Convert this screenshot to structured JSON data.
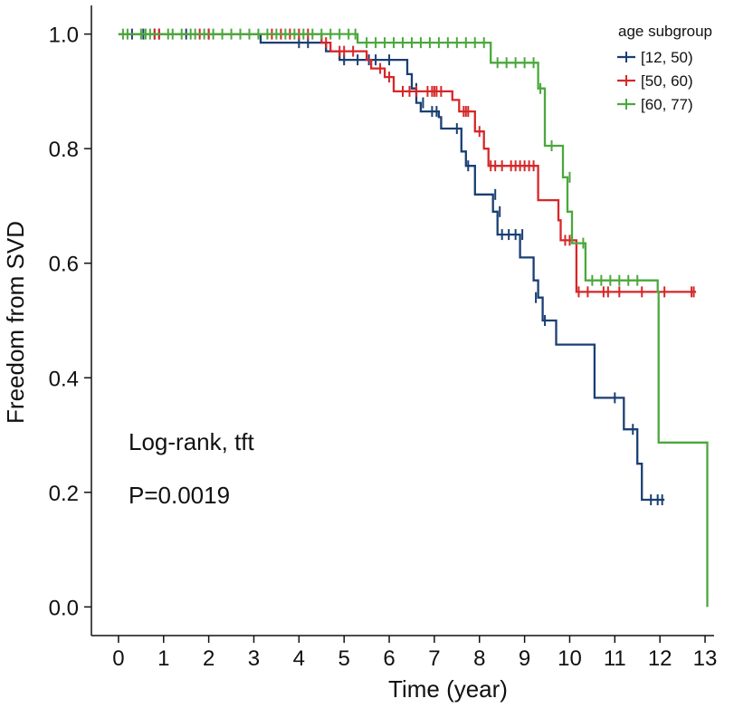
{
  "chart_data": {
    "type": "line",
    "subtype": "kaplan-meier",
    "title": "",
    "xlabel": "Time (year)",
    "ylabel": "Freedom from SVD",
    "xlim": [
      -0.6,
      13.2
    ],
    "ylim": [
      -0.05,
      1.05
    ],
    "x_ticks": [
      0,
      1,
      2,
      3,
      4,
      5,
      6,
      7,
      8,
      9,
      10,
      11,
      12,
      13
    ],
    "x_tick_labels": [
      "0",
      "1",
      "2",
      "3",
      "4",
      "5",
      "6",
      "7",
      "8",
      "9",
      "10",
      "11",
      "12",
      "13"
    ],
    "y_ticks": [
      0.0,
      0.2,
      0.4,
      0.6,
      0.8,
      1.0
    ],
    "y_tick_labels": [
      "0.0",
      "0.2",
      "0.4",
      "0.6",
      "0.8",
      "1.0"
    ],
    "grid": false,
    "legend": {
      "title": "age subgroup",
      "position": "top-right"
    },
    "annotations": [
      "Log-rank, tft",
      "P=0.0019"
    ],
    "series": [
      {
        "name": "[12, 50)",
        "color": "#1a3f73",
        "steps": [
          [
            0,
            1.0
          ],
          [
            3.15,
            0.985
          ],
          [
            4.6,
            0.97
          ],
          [
            4.9,
            0.955
          ],
          [
            6.4,
            0.93
          ],
          [
            6.5,
            0.905
          ],
          [
            6.6,
            0.88
          ],
          [
            6.7,
            0.865
          ],
          [
            7.1,
            0.855
          ],
          [
            7.15,
            0.835
          ],
          [
            7.6,
            0.795
          ],
          [
            7.7,
            0.77
          ],
          [
            7.9,
            0.72
          ],
          [
            8.3,
            0.69
          ],
          [
            8.4,
            0.65
          ],
          [
            8.9,
            0.61
          ],
          [
            9.2,
            0.57
          ],
          [
            9.3,
            0.54
          ],
          [
            9.4,
            0.5
          ],
          [
            9.7,
            0.458
          ],
          [
            10.55,
            0.365
          ],
          [
            11.2,
            0.31
          ],
          [
            11.5,
            0.25
          ],
          [
            11.6,
            0.187
          ],
          [
            12.1,
            0.187
          ]
        ],
        "censor": [
          [
            0.3,
            1.0
          ],
          [
            0.55,
            1.0
          ],
          [
            0.8,
            1.0
          ],
          [
            0.9,
            1.0
          ],
          [
            1.5,
            1.0
          ],
          [
            2.0,
            1.0
          ],
          [
            4.0,
            0.985
          ],
          [
            4.2,
            0.985
          ],
          [
            5.0,
            0.955
          ],
          [
            5.3,
            0.955
          ],
          [
            5.55,
            0.955
          ],
          [
            5.7,
            0.955
          ],
          [
            6.0,
            0.955
          ],
          [
            6.6,
            0.905
          ],
          [
            6.75,
            0.88
          ],
          [
            6.95,
            0.865
          ],
          [
            7.05,
            0.865
          ],
          [
            7.5,
            0.835
          ],
          [
            7.75,
            0.77
          ],
          [
            8.35,
            0.72
          ],
          [
            8.45,
            0.69
          ],
          [
            8.5,
            0.65
          ],
          [
            8.65,
            0.65
          ],
          [
            8.8,
            0.65
          ],
          [
            8.95,
            0.65
          ],
          [
            9.25,
            0.54
          ],
          [
            9.45,
            0.5
          ],
          [
            11.0,
            0.365
          ],
          [
            11.4,
            0.31
          ],
          [
            11.8,
            0.187
          ],
          [
            11.95,
            0.187
          ],
          [
            12.05,
            0.187
          ]
        ]
      },
      {
        "name": "[50, 60)",
        "color": "#d62728",
        "steps": [
          [
            0,
            1.0
          ],
          [
            4.5,
            0.985
          ],
          [
            4.7,
            0.97
          ],
          [
            5.5,
            0.955
          ],
          [
            5.6,
            0.94
          ],
          [
            5.9,
            0.925
          ],
          [
            6.1,
            0.9
          ],
          [
            7.4,
            0.885
          ],
          [
            7.55,
            0.865
          ],
          [
            7.9,
            0.83
          ],
          [
            8.1,
            0.8
          ],
          [
            8.2,
            0.77
          ],
          [
            9.3,
            0.71
          ],
          [
            9.75,
            0.675
          ],
          [
            9.8,
            0.64
          ],
          [
            10.15,
            0.55
          ],
          [
            12.8,
            0.55
          ]
        ],
        "censor": [
          [
            0.8,
            1.0
          ],
          [
            0.9,
            1.0
          ],
          [
            1.8,
            1.0
          ],
          [
            2.0,
            1.0
          ],
          [
            3.4,
            1.0
          ],
          [
            3.6,
            1.0
          ],
          [
            3.8,
            1.0
          ],
          [
            4.0,
            1.0
          ],
          [
            4.2,
            1.0
          ],
          [
            4.6,
            0.985
          ],
          [
            4.9,
            0.97
          ],
          [
            5.0,
            0.97
          ],
          [
            5.2,
            0.97
          ],
          [
            5.8,
            0.94
          ],
          [
            6.0,
            0.925
          ],
          [
            6.3,
            0.9
          ],
          [
            6.45,
            0.9
          ],
          [
            6.6,
            0.9
          ],
          [
            6.85,
            0.9
          ],
          [
            6.95,
            0.9
          ],
          [
            7.0,
            0.9
          ],
          [
            7.05,
            0.9
          ],
          [
            7.15,
            0.9
          ],
          [
            7.65,
            0.865
          ],
          [
            7.7,
            0.865
          ],
          [
            7.75,
            0.865
          ],
          [
            8.0,
            0.83
          ],
          [
            8.25,
            0.77
          ],
          [
            8.35,
            0.77
          ],
          [
            8.5,
            0.77
          ],
          [
            8.7,
            0.77
          ],
          [
            8.8,
            0.77
          ],
          [
            8.9,
            0.77
          ],
          [
            9.0,
            0.77
          ],
          [
            9.1,
            0.77
          ],
          [
            9.2,
            0.77
          ],
          [
            9.9,
            0.64
          ],
          [
            10.0,
            0.64
          ],
          [
            10.2,
            0.55
          ],
          [
            10.4,
            0.55
          ],
          [
            10.75,
            0.55
          ],
          [
            10.85,
            0.55
          ],
          [
            11.1,
            0.55
          ],
          [
            11.6,
            0.55
          ],
          [
            12.1,
            0.55
          ],
          [
            12.7,
            0.55
          ],
          [
            12.75,
            0.55
          ]
        ]
      },
      {
        "name": "[60, 77)",
        "color": "#4aa83c",
        "steps": [
          [
            0,
            1.0
          ],
          [
            5.3,
            0.985
          ],
          [
            8.25,
            0.95
          ],
          [
            9.3,
            0.905
          ],
          [
            9.45,
            0.805
          ],
          [
            9.85,
            0.75
          ],
          [
            9.95,
            0.69
          ],
          [
            10.05,
            0.635
          ],
          [
            10.35,
            0.57
          ],
          [
            11.95,
            0.55
          ],
          [
            11.97,
            0.287
          ],
          [
            13.05,
            0.0
          ]
        ],
        "censor": [
          [
            0.1,
            1.0
          ],
          [
            0.2,
            1.0
          ],
          [
            0.5,
            1.0
          ],
          [
            0.6,
            1.0
          ],
          [
            0.7,
            1.0
          ],
          [
            1.1,
            1.0
          ],
          [
            1.2,
            1.0
          ],
          [
            1.4,
            1.0
          ],
          [
            1.6,
            1.0
          ],
          [
            1.7,
            1.0
          ],
          [
            1.9,
            1.0
          ],
          [
            2.1,
            1.0
          ],
          [
            2.3,
            1.0
          ],
          [
            2.5,
            1.0
          ],
          [
            2.7,
            1.0
          ],
          [
            2.9,
            1.0
          ],
          [
            3.1,
            1.0
          ],
          [
            3.3,
            1.0
          ],
          [
            3.5,
            1.0
          ],
          [
            3.7,
            1.0
          ],
          [
            3.9,
            1.0
          ],
          [
            4.1,
            1.0
          ],
          [
            4.3,
            1.0
          ],
          [
            4.5,
            1.0
          ],
          [
            4.7,
            1.0
          ],
          [
            4.9,
            1.0
          ],
          [
            5.1,
            1.0
          ],
          [
            5.25,
            1.0
          ],
          [
            5.5,
            0.985
          ],
          [
            5.7,
            0.985
          ],
          [
            5.9,
            0.985
          ],
          [
            6.1,
            0.985
          ],
          [
            6.3,
            0.985
          ],
          [
            6.5,
            0.985
          ],
          [
            6.7,
            0.985
          ],
          [
            6.9,
            0.985
          ],
          [
            7.1,
            0.985
          ],
          [
            7.3,
            0.985
          ],
          [
            7.5,
            0.985
          ],
          [
            7.7,
            0.985
          ],
          [
            7.9,
            0.985
          ],
          [
            8.1,
            0.985
          ],
          [
            8.4,
            0.95
          ],
          [
            8.6,
            0.95
          ],
          [
            8.8,
            0.95
          ],
          [
            9.0,
            0.95
          ],
          [
            9.2,
            0.95
          ],
          [
            9.35,
            0.905
          ],
          [
            9.6,
            0.805
          ],
          [
            10.0,
            0.75
          ],
          [
            10.3,
            0.635
          ],
          [
            10.5,
            0.57
          ],
          [
            10.7,
            0.57
          ],
          [
            10.9,
            0.57
          ],
          [
            11.1,
            0.57
          ],
          [
            11.3,
            0.57
          ],
          [
            11.5,
            0.57
          ]
        ]
      }
    ]
  }
}
